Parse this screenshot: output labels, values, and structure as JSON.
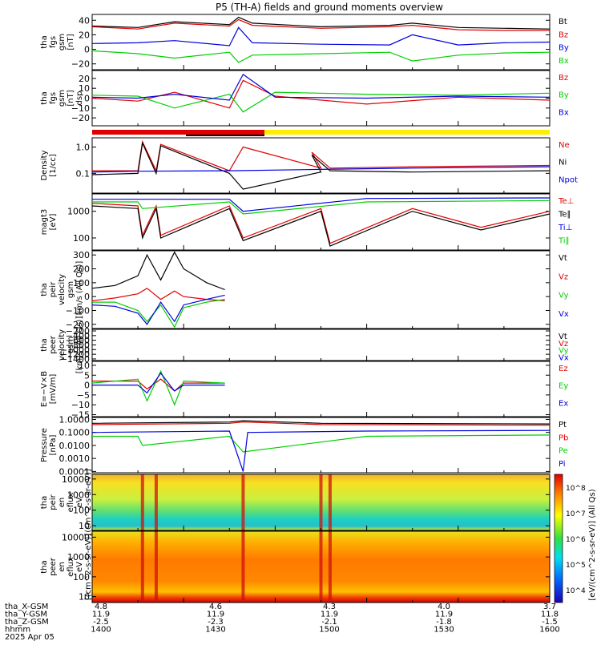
{
  "title": "P5 (TH-A) fields and ground moments overview",
  "orbit_labels": [
    "tha_X-GSM",
    "tha_Y-GSM",
    "tha_Z-GSM",
    "hhmm",
    "2025 Apr 05"
  ],
  "orbit_ticks": [
    [
      "4.8",
      "11.9",
      "-2.5",
      "1400"
    ],
    [
      "4.6",
      "11.9",
      "-2.3",
      "1430"
    ],
    [
      "4.3",
      "11.9",
      "-2.1",
      "1500"
    ],
    [
      "4.0",
      "11.9",
      "-1.8",
      "1530"
    ],
    [
      "3.7",
      "11.8",
      "-1.5",
      "1600"
    ]
  ],
  "colorbar": {
    "label": "[eV/(cm^2-s-sr-eV)] (All Qs)",
    "stops": [
      "#1d00b8",
      "#0068ff",
      "#00e0f0",
      "#30e040",
      "#ffff00",
      "#ff8000",
      "#e00000"
    ]
  },
  "colors": {
    "black": "#000000",
    "red": "#e00000",
    "green": "#00d000",
    "blue": "#0000e0",
    "yellow": "#ffee00"
  },
  "chart_data": [
    {
      "type": "line",
      "ylabel": [
        "tha",
        "fgs",
        "gsm",
        "[nT]"
      ],
      "yticks": [
        {
          "v": 40,
          "t": "40"
        },
        {
          "v": 20,
          "t": "20"
        },
        {
          "v": 0,
          "t": "0"
        },
        {
          "v": -20,
          "t": "−20"
        }
      ],
      "ylim": [
        -28,
        48
      ],
      "legend": [
        "Bt",
        "Bz",
        "By",
        "Bx"
      ],
      "series": [
        {
          "name": "Bt",
          "color": "black",
          "x": [
            0,
            0.1,
            0.18,
            0.3,
            0.32,
            0.35,
            0.5,
            0.65,
            0.7,
            0.8,
            0.9,
            1.0
          ],
          "y": [
            32,
            30,
            38,
            34,
            44,
            36,
            31,
            33,
            36,
            30,
            29,
            28
          ]
        },
        {
          "name": "Bz",
          "color": "red",
          "x": [
            0,
            0.1,
            0.18,
            0.3,
            0.32,
            0.35,
            0.5,
            0.65,
            0.7,
            0.8,
            0.9,
            1.0
          ],
          "y": [
            31,
            28,
            36,
            32,
            41,
            33,
            29,
            31,
            33,
            27,
            26,
            26
          ]
        },
        {
          "name": "By",
          "color": "blue",
          "x": [
            0,
            0.1,
            0.18,
            0.3,
            0.32,
            0.35,
            0.5,
            0.65,
            0.7,
            0.8,
            0.9,
            1.0
          ],
          "y": [
            8,
            9,
            12,
            5,
            30,
            9,
            7,
            6,
            20,
            6,
            9,
            10
          ]
        },
        {
          "name": "Bx",
          "color": "green",
          "x": [
            0,
            0.1,
            0.18,
            0.3,
            0.32,
            0.35,
            0.5,
            0.65,
            0.7,
            0.8,
            0.9,
            1.0
          ],
          "y": [
            -2,
            -6,
            -12,
            -4,
            -18,
            -8,
            -6,
            -4,
            -16,
            -8,
            -5,
            -4
          ]
        }
      ]
    },
    {
      "type": "line",
      "ylabel": [
        "tha",
        "fgs",
        "gsm",
        "[nT]",
        "dsp"
      ],
      "yticks": [
        {
          "v": 20,
          "t": "20"
        },
        {
          "v": 10,
          "t": "10"
        },
        {
          "v": 0,
          "t": "0"
        },
        {
          "v": -10,
          "t": "−10"
        },
        {
          "v": -20,
          "t": "−20"
        }
      ],
      "ylim": [
        -28,
        28
      ],
      "legend": [
        "Bz",
        "By",
        "Bx"
      ],
      "series": [
        {
          "name": "Bz",
          "color": "red",
          "x": [
            0,
            0.1,
            0.18,
            0.3,
            0.33,
            0.4,
            0.6,
            0.8,
            1.0
          ],
          "y": [
            0,
            -3,
            6,
            -10,
            18,
            2,
            -6,
            1,
            -2
          ]
        },
        {
          "name": "By",
          "color": "green",
          "x": [
            0,
            0.1,
            0.18,
            0.3,
            0.33,
            0.4,
            0.6,
            0.8,
            1.0
          ],
          "y": [
            3,
            2,
            -10,
            4,
            -14,
            6,
            4,
            3,
            5
          ]
        },
        {
          "name": "Bx",
          "color": "blue",
          "x": [
            0,
            0.1,
            0.18,
            0.3,
            0.33,
            0.4,
            0.6,
            0.8,
            1.0
          ],
          "y": [
            1,
            0,
            4,
            -2,
            24,
            1,
            0,
            2,
            1
          ]
        }
      ]
    },
    {
      "type": "line",
      "ylabel": [
        "Density",
        "[1/cc]"
      ],
      "yticks": [
        {
          "v": 0,
          "t": "1.0"
        },
        {
          "v": -1,
          "t": "0.1"
        }
      ],
      "ylim": [
        -1.75,
        0.35
      ],
      "log_scale": true,
      "legend": [
        "Ne",
        "Ni",
        "Npot"
      ],
      "series": [
        {
          "name": "Ne",
          "color": "red",
          "x": [
            0,
            0.1,
            0.11,
            0.14,
            0.15,
            0.3,
            0.33,
            0.5,
            0.48,
            0.52,
            0.7,
            1.0
          ],
          "y": [
            -0.9,
            -0.9,
            0.2,
            -0.9,
            0.1,
            -0.9,
            0.0,
            -0.8,
            -0.2,
            -0.8,
            -0.75,
            -0.7
          ]
        },
        {
          "name": "Ni",
          "color": "black",
          "x": [
            0,
            0.1,
            0.11,
            0.14,
            0.15,
            0.3,
            0.33,
            0.5,
            0.48,
            0.52,
            0.7,
            1.0
          ],
          "y": [
            -1.05,
            -1.0,
            0.15,
            -1.0,
            0.05,
            -1.0,
            -1.6,
            -0.95,
            -0.3,
            -0.9,
            -0.95,
            -0.9
          ]
        },
        {
          "name": "Npot",
          "color": "blue",
          "x": [
            0,
            0.1,
            0.3,
            0.5,
            0.7,
            1.0
          ],
          "y": [
            -0.95,
            -0.92,
            -0.9,
            -0.85,
            -0.8,
            -0.75
          ]
        }
      ]
    },
    {
      "type": "line",
      "ylabel": [
        "magt3",
        "[eV]"
      ],
      "yticks": [
        {
          "v": 3,
          "t": "1000"
        },
        {
          "v": 2,
          "t": "100"
        }
      ],
      "ylim": [
        1.55,
        3.65
      ],
      "log_scale": true,
      "legend": [
        "Te⊥",
        "Te∥",
        "Ti⊥",
        "Ti∥"
      ],
      "series": [
        {
          "name": "Te⊥",
          "color": "red",
          "x": [
            0,
            0.1,
            0.11,
            0.14,
            0.15,
            0.3,
            0.33,
            0.5,
            0.52,
            0.7,
            0.85,
            1.0
          ],
          "y": [
            3.3,
            3.2,
            2.1,
            3.2,
            2.1,
            3.2,
            2.0,
            3.1,
            1.8,
            3.1,
            2.4,
            3.0
          ]
        },
        {
          "name": "Te∥",
          "color": "black",
          "x": [
            0,
            0.1,
            0.11,
            0.14,
            0.15,
            0.3,
            0.33,
            0.5,
            0.52,
            0.7,
            0.85,
            1.0
          ],
          "y": [
            3.2,
            3.1,
            2.0,
            3.1,
            2.0,
            3.1,
            1.9,
            3.0,
            1.7,
            3.0,
            2.3,
            2.9
          ]
        },
        {
          "name": "Ti⊥",
          "color": "blue",
          "x": [
            0,
            0.3,
            0.33,
            0.6,
            1.0
          ],
          "y": [
            3.45,
            3.45,
            3.0,
            3.48,
            3.5
          ]
        },
        {
          "name": "Ti∥",
          "color": "green",
          "x": [
            0,
            0.1,
            0.11,
            0.3,
            0.33,
            0.6,
            1.0
          ],
          "y": [
            3.35,
            3.35,
            3.1,
            3.35,
            2.9,
            3.35,
            3.4
          ]
        }
      ]
    },
    {
      "type": "line",
      "ylabel": [
        "tha",
        "peir",
        "velocity",
        "gsm",
        "[km/s (All Qs)]"
      ],
      "yticks": [
        {
          "v": 300,
          "t": "300"
        },
        {
          "v": 200,
          "t": "200"
        },
        {
          "v": 100,
          "t": "100"
        },
        {
          "v": 0,
          "t": "0"
        },
        {
          "v": -100,
          "t": "−100"
        },
        {
          "v": -200,
          "t": "−200"
        }
      ],
      "ylim": [
        -230,
        330
      ],
      "legend": [
        "Vt",
        "Vz",
        "Vy",
        "Vx"
      ],
      "series": [
        {
          "name": "Vt",
          "color": "black",
          "x": [
            0,
            0.05,
            0.1,
            0.12,
            0.15,
            0.18,
            0.2,
            0.25,
            0.29
          ],
          "y": [
            60,
            80,
            150,
            300,
            120,
            320,
            200,
            100,
            50
          ]
        },
        {
          "name": "Vz",
          "color": "red",
          "x": [
            0,
            0.05,
            0.1,
            0.12,
            0.15,
            0.18,
            0.2,
            0.25,
            0.29
          ],
          "y": [
            -30,
            -10,
            20,
            60,
            -20,
            40,
            0,
            -20,
            -30
          ]
        },
        {
          "name": "Vy",
          "color": "green",
          "x": [
            0,
            0.05,
            0.1,
            0.12,
            0.15,
            0.18,
            0.2,
            0.25,
            0.29
          ],
          "y": [
            -40,
            -40,
            -100,
            -180,
            -60,
            -220,
            -80,
            -40,
            -20
          ]
        },
        {
          "name": "Vx",
          "color": "blue",
          "x": [
            0,
            0.05,
            0.1,
            0.12,
            0.15,
            0.18,
            0.2,
            0.25,
            0.29
          ],
          "y": [
            -60,
            -70,
            -120,
            -200,
            -40,
            -180,
            -60,
            -20,
            10
          ]
        }
      ]
    },
    {
      "type": "line",
      "ylabel": [
        "tha",
        "peer",
        "velocity",
        "gsm",
        "[km/s (All Qs)]"
      ],
      "yticks": [
        {
          "v": -200,
          "t": "−200"
        },
        {
          "v": -400,
          "t": "−400"
        },
        {
          "v": -600,
          "t": "−600"
        },
        {
          "v": -800,
          "t": "−800"
        },
        {
          "v": -1000,
          "t": "−1000"
        },
        {
          "v": -1200,
          "t": "−1200"
        },
        {
          "v": -1400,
          "t": "−1400"
        }
      ],
      "ylim": [
        -1470,
        -130
      ],
      "legend": [
        "Vt",
        "Vz",
        "Vy",
        "Vx"
      ],
      "series": []
    },
    {
      "type": "line",
      "ylabel": [
        "E=−V×B",
        "[mV/m]"
      ],
      "yticks": [
        {
          "v": 10,
          "t": "10"
        },
        {
          "v": 5,
          "t": "5"
        },
        {
          "v": 0,
          "t": "0"
        },
        {
          "v": -5,
          "t": "−5"
        },
        {
          "v": -10,
          "t": "−10"
        },
        {
          "v": -15,
          "t": "−15"
        }
      ],
      "ylim": [
        -16,
        12
      ],
      "legend": [
        "Ez",
        "Ey",
        "Ex"
      ],
      "series": [
        {
          "name": "Ez",
          "color": "red",
          "x": [
            0,
            0.1,
            0.12,
            0.15,
            0.18,
            0.2,
            0.29
          ],
          "y": [
            2,
            2,
            -2,
            3,
            -3,
            1,
            1
          ]
        },
        {
          "name": "Ey",
          "color": "green",
          "x": [
            0,
            0.1,
            0.12,
            0.15,
            0.18,
            0.2,
            0.29
          ],
          "y": [
            1,
            3,
            -8,
            7,
            -10,
            2,
            1
          ]
        },
        {
          "name": "Ex",
          "color": "blue",
          "x": [
            0,
            0.1,
            0.12,
            0.15,
            0.18,
            0.2,
            0.29
          ],
          "y": [
            0,
            0,
            -4,
            6,
            -3,
            0,
            0
          ]
        }
      ]
    },
    {
      "type": "line",
      "ylabel": [
        "Pressure",
        "[nPa]"
      ],
      "yticks": [
        {
          "v": 0,
          "t": "1.0000"
        },
        {
          "v": -1,
          "t": "0.1000"
        },
        {
          "v": -2,
          "t": "0.0100"
        },
        {
          "v": -3,
          "t": "0.0010"
        },
        {
          "v": -4,
          "t": "0.0001"
        }
      ],
      "ylim": [
        -4.1,
        0.15
      ],
      "log_scale": true,
      "legend": [
        "Pt",
        "Pb",
        "Pe",
        "Pi"
      ],
      "series": [
        {
          "name": "Pt",
          "color": "black",
          "x": [
            0,
            0.3,
            0.33,
            0.5,
            1.0
          ],
          "y": [
            -0.3,
            -0.2,
            -0.1,
            -0.3,
            -0.35
          ]
        },
        {
          "name": "Pb",
          "color": "red",
          "x": [
            0,
            0.3,
            0.33,
            0.5,
            1.0
          ],
          "y": [
            -0.4,
            -0.3,
            -0.2,
            -0.4,
            -0.45
          ]
        },
        {
          "name": "Pe",
          "color": "green",
          "x": [
            0,
            0.1,
            0.11,
            0.3,
            0.33,
            0.6,
            1.0
          ],
          "y": [
            -1.3,
            -1.3,
            -2.0,
            -1.3,
            -2.5,
            -1.3,
            -1.2
          ]
        },
        {
          "name": "Pi",
          "color": "blue",
          "x": [
            0,
            0.3,
            0.33,
            0.34,
            0.6,
            1.0
          ],
          "y": [
            -1.0,
            -0.9,
            -4.0,
            -1.0,
            -0.9,
            -0.85
          ]
        }
      ]
    },
    {
      "type": "heatmap",
      "ylabel": [
        "tha",
        "peir",
        "en",
        "eflux",
        "eV",
        "[(cm^2-s-sr-eV)]"
      ],
      "yticks": [
        {
          "v": 4,
          "t": "10000"
        },
        {
          "v": 3,
          "t": "1000"
        },
        {
          "v": 2,
          "t": "100"
        },
        {
          "v": 1,
          "t": "10"
        }
      ],
      "ylim": [
        0.7,
        4.3
      ],
      "log_scale": true,
      "colorbar": [
        "10^4",
        "10^5",
        "10^6",
        "10^7",
        "10^8"
      ]
    },
    {
      "type": "heatmap",
      "ylabel": [
        "tha",
        "peer",
        "en",
        "eflux",
        "eV",
        "[(cm^2-s-sr-eV)]"
      ],
      "yticks": [
        {
          "v": 4,
          "t": "10000"
        },
        {
          "v": 3,
          "t": "1000"
        },
        {
          "v": 2,
          "t": "100"
        },
        {
          "v": 1,
          "t": "10"
        }
      ],
      "ylim": [
        0.7,
        4.3
      ],
      "log_scale": true,
      "colorbar": [
        "10^4",
        "10^5",
        "10^6",
        "10^7",
        "10^8"
      ]
    }
  ]
}
